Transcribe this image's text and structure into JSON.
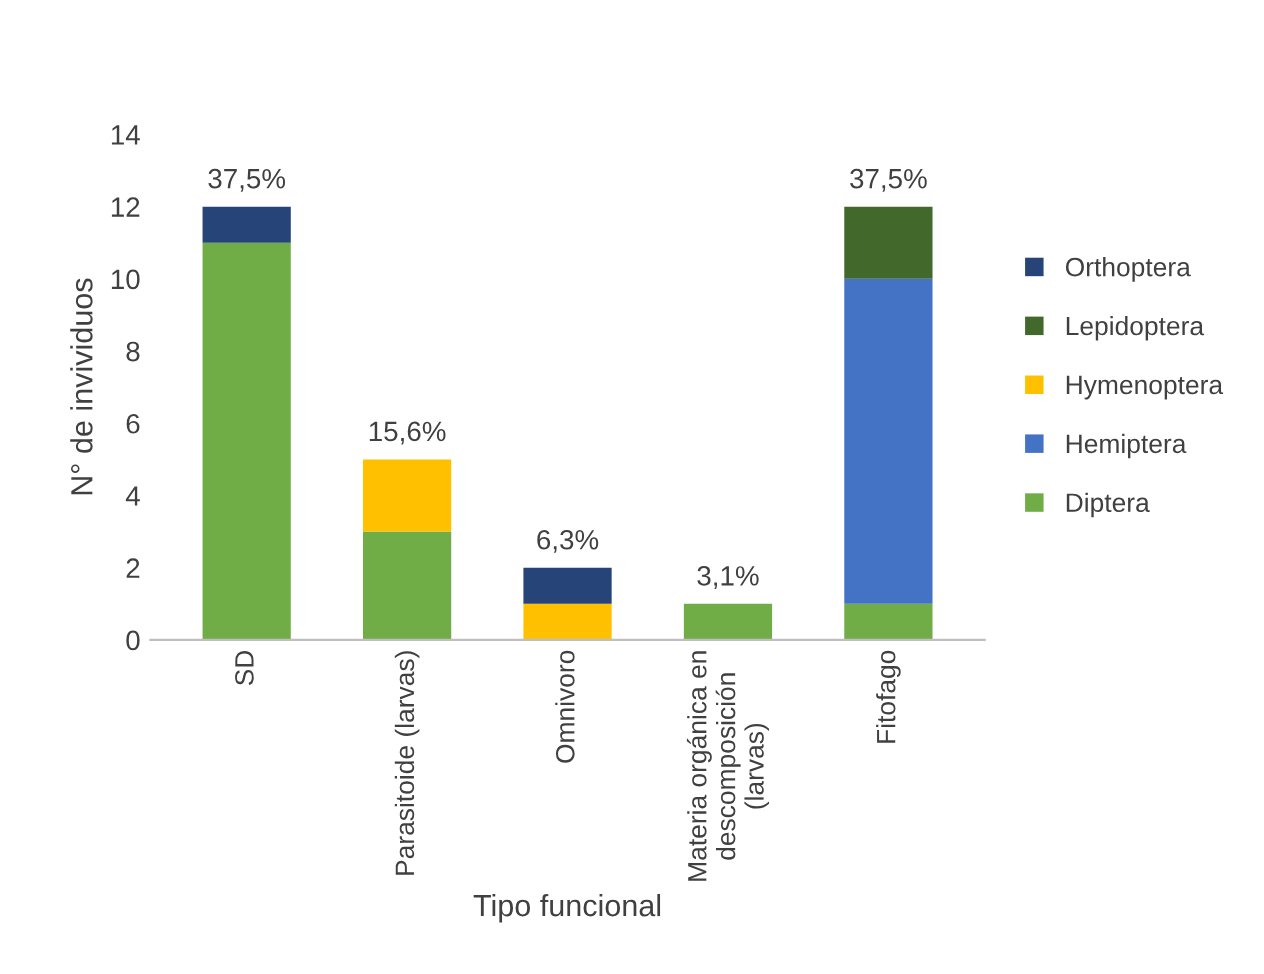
{
  "chart_data": {
    "type": "bar",
    "stacked": true,
    "xlabel": "Tipo funcional",
    "ylabel": "N° de invividuos",
    "categories": [
      "SD",
      "Parasitoide (larvas)",
      "Omnivoro",
      "Materia orgánica en\ndescomposición\n(larvas)",
      "Fitofago"
    ],
    "series": [
      {
        "name": "Diptera",
        "color": "#70ad47",
        "values": [
          11,
          3,
          0,
          1,
          1
        ]
      },
      {
        "name": "Hemiptera",
        "color": "#4472c4",
        "values": [
          0,
          0,
          0,
          0,
          9
        ]
      },
      {
        "name": "Hymenoptera",
        "color": "#ffc000",
        "values": [
          0,
          2,
          1,
          0,
          0
        ]
      },
      {
        "name": "Lepidoptera",
        "color": "#43682b",
        "values": [
          0,
          0,
          0,
          0,
          2
        ]
      },
      {
        "name": "Orthoptera",
        "color": "#264478",
        "values": [
          1,
          0,
          1,
          0,
          0
        ]
      }
    ],
    "annotations": [
      {
        "text": "37,5%",
        "x": "SD",
        "y": 12
      },
      {
        "text": "15,6%",
        "x": "Parasitoide (larvas)",
        "y": 5
      },
      {
        "text": "6,3%",
        "x": "Omnivoro",
        "y": 2
      },
      {
        "text": "3,1%",
        "x": "Materia orgánica en\ndescomposición\n(larvas)",
        "y": 1
      },
      {
        "text": "37,5%",
        "x": "Fitofago",
        "y": 12
      }
    ],
    "ylim": [
      0,
      14
    ],
    "yticks": [
      0,
      2,
      4,
      6,
      8,
      10,
      12,
      14
    ],
    "grid": false,
    "legend": "right"
  }
}
